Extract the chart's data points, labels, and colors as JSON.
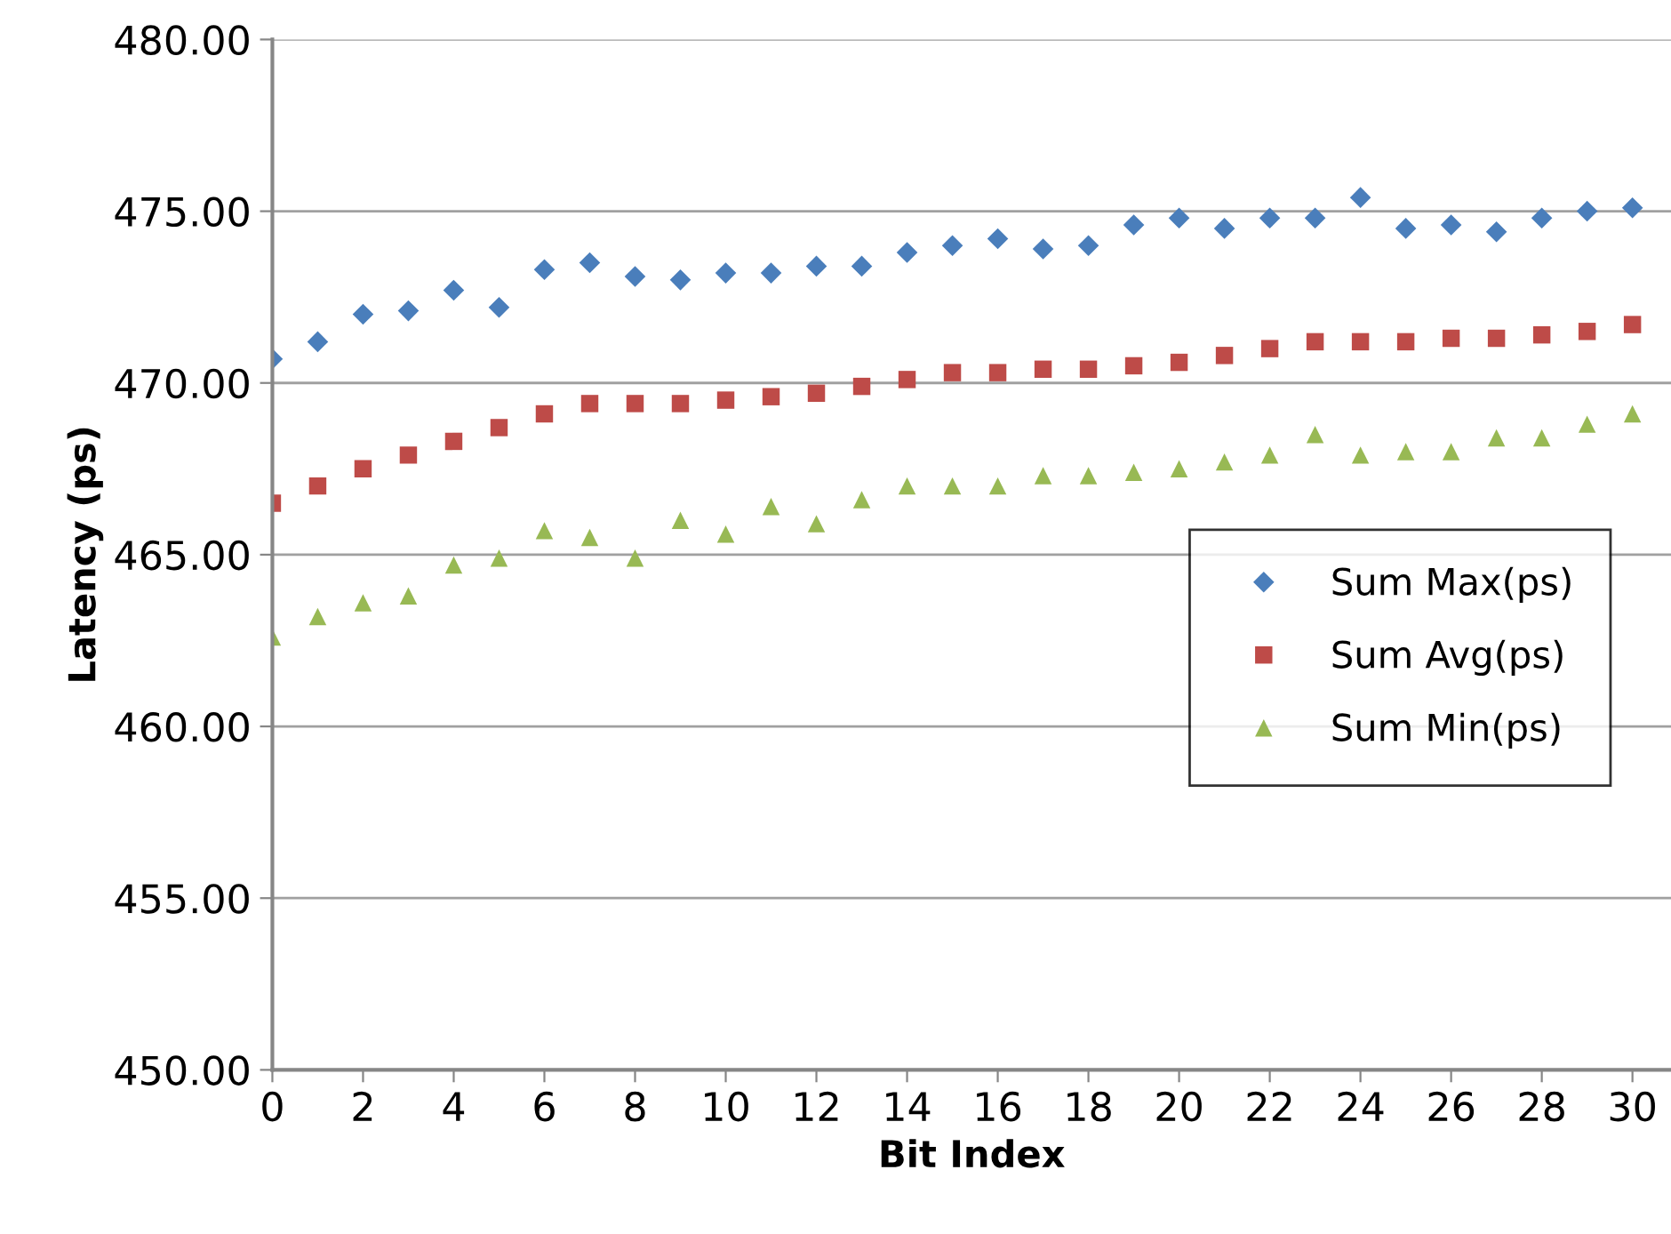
{
  "chart_data": {
    "type": "scatter",
    "xlabel": "Bit Index",
    "ylabel": "Latency (ps)",
    "x": [
      0,
      1,
      2,
      3,
      4,
      5,
      6,
      7,
      8,
      9,
      10,
      11,
      12,
      13,
      14,
      15,
      16,
      17,
      18,
      19,
      20,
      21,
      22,
      23,
      24,
      25,
      26,
      27,
      28,
      29,
      30
    ],
    "series": [
      {
        "name": "Sum Max(ps)",
        "color": "#4a7ebb",
        "marker": "diamond",
        "values": [
          470.7,
          471.2,
          472.0,
          472.1,
          472.7,
          472.2,
          473.3,
          473.5,
          473.1,
          473.0,
          473.2,
          473.2,
          473.4,
          473.4,
          473.8,
          474.0,
          474.2,
          473.9,
          474.0,
          474.6,
          474.8,
          474.5,
          474.8,
          474.8,
          475.4,
          474.5,
          474.6,
          474.4,
          474.8,
          475.0,
          475.1
        ]
      },
      {
        "name": "Sum Avg(ps)",
        "color": "#be4b48",
        "marker": "square",
        "values": [
          466.5,
          467.0,
          467.5,
          467.9,
          468.3,
          468.7,
          469.1,
          469.4,
          469.4,
          469.4,
          469.5,
          469.6,
          469.7,
          469.9,
          470.1,
          470.3,
          470.3,
          470.4,
          470.4,
          470.5,
          470.6,
          470.8,
          471.0,
          471.2,
          471.2,
          471.2,
          471.3,
          471.3,
          471.4,
          471.5,
          471.7
        ]
      },
      {
        "name": "Sum Min(ps)",
        "color": "#98b954",
        "marker": "triangle",
        "values": [
          462.6,
          463.2,
          463.6,
          463.8,
          464.7,
          464.9,
          465.7,
          465.5,
          464.9,
          466.0,
          465.6,
          466.4,
          465.9,
          466.6,
          467.0,
          467.0,
          467.0,
          467.3,
          467.3,
          467.4,
          467.5,
          467.7,
          467.9,
          468.5,
          467.9,
          468.0,
          468.0,
          468.4,
          468.4,
          468.8,
          469.1
        ]
      }
    ],
    "xlim": [
      0,
      30.85
    ],
    "xticks": [
      0,
      2,
      4,
      6,
      8,
      10,
      12,
      14,
      16,
      18,
      20,
      22,
      24,
      26,
      28,
      30
    ],
    "ylim": [
      450,
      480
    ],
    "yticks": [
      {
        "value": 450,
        "label": "450.00"
      },
      {
        "value": 455,
        "label": "455.00"
      },
      {
        "value": 460,
        "label": "460.00"
      },
      {
        "value": 465,
        "label": "465.00"
      },
      {
        "value": 470,
        "label": "470.00"
      },
      {
        "value": 475,
        "label": "475.00"
      },
      {
        "value": 480,
        "label": "480.00"
      }
    ],
    "grid": "y",
    "legend": "right"
  }
}
